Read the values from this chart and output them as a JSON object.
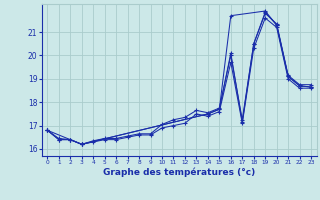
{
  "background_color": "#cce8e8",
  "grid_color": "#aacccc",
  "line_color": "#1a2eaa",
  "xlim": [
    -0.5,
    23.5
  ],
  "ylim": [
    15.7,
    22.2
  ],
  "yticks": [
    16,
    17,
    18,
    19,
    20,
    21
  ],
  "xticks": [
    0,
    1,
    2,
    3,
    4,
    5,
    6,
    7,
    8,
    9,
    10,
    11,
    12,
    13,
    14,
    15,
    16,
    17,
    18,
    19,
    20,
    21,
    22,
    23
  ],
  "series1_x": [
    0,
    1,
    2,
    3,
    4,
    5,
    6,
    7,
    8,
    9,
    10,
    11,
    12,
    13,
    14,
    15,
    16,
    17,
    18,
    19,
    20,
    21,
    22,
    23
  ],
  "series1_y": [
    16.8,
    16.4,
    16.4,
    16.2,
    16.3,
    16.4,
    16.4,
    16.5,
    16.6,
    16.6,
    16.9,
    17.0,
    17.1,
    17.5,
    17.4,
    17.6,
    19.7,
    17.1,
    20.3,
    21.6,
    21.2,
    19.0,
    18.6,
    18.6
  ],
  "series2_x": [
    0,
    1,
    2,
    3,
    4,
    5,
    6,
    7,
    8,
    9,
    10,
    11,
    12,
    13,
    14,
    15,
    16,
    17,
    18,
    19,
    20,
    21,
    22,
    23
  ],
  "series2_y": [
    16.8,
    16.4,
    16.4,
    16.2,
    16.35,
    16.45,
    16.45,
    16.55,
    16.65,
    16.65,
    17.05,
    17.25,
    17.35,
    17.65,
    17.55,
    17.75,
    20.0,
    17.25,
    20.5,
    21.8,
    21.35,
    19.15,
    18.75,
    18.75
  ],
  "series3_x": [
    0,
    1,
    2,
    3,
    14,
    15,
    16,
    17,
    18,
    19,
    20,
    21,
    22,
    23
  ],
  "series3_y": [
    16.8,
    16.45,
    16.4,
    16.2,
    17.5,
    17.7,
    20.1,
    17.15,
    20.5,
    21.85,
    21.3,
    19.1,
    18.7,
    18.65
  ],
  "series4_x": [
    0,
    3,
    14,
    15,
    16,
    19,
    20,
    21,
    22,
    23
  ],
  "series4_y": [
    16.8,
    16.2,
    17.5,
    17.7,
    21.7,
    21.9,
    21.3,
    19.1,
    18.7,
    18.65
  ],
  "xlabel": "Graphe des températures (°c)"
}
